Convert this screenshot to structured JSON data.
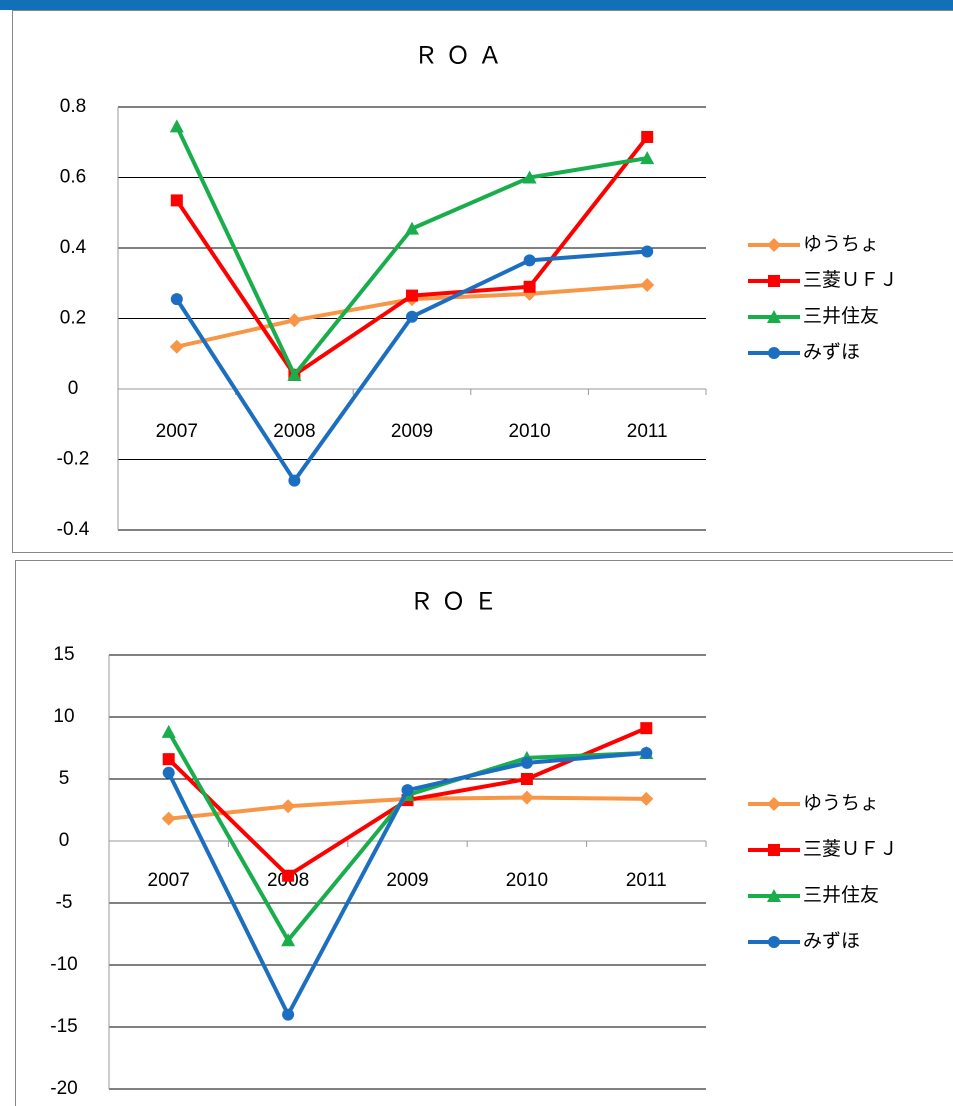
{
  "chart_data": [
    {
      "type": "line",
      "title": "ＲＯＡ",
      "categories": [
        "2007",
        "2008",
        "2009",
        "2010",
        "2011"
      ],
      "ylim": [
        -0.4,
        0.8
      ],
      "yticks": [
        -0.4,
        -0.2,
        0,
        0.2,
        0.4,
        0.6,
        0.8
      ],
      "grid": true,
      "legend": "right",
      "series": [
        {
          "name": "ゆうちょ",
          "color": "#f79646",
          "marker": "diamond",
          "values": [
            0.12,
            0.195,
            0.255,
            0.27,
            0.295
          ]
        },
        {
          "name": "三菱ＵＦＪ",
          "color": "#ff0000",
          "marker": "square",
          "values": [
            0.535,
            0.04,
            0.265,
            0.29,
            0.715
          ]
        },
        {
          "name": "三井住友",
          "color": "#1aad4c",
          "marker": "triangle",
          "values": [
            0.745,
            0.04,
            0.455,
            0.6,
            0.655
          ]
        },
        {
          "name": "みずほ",
          "color": "#1c6fc0",
          "marker": "circle",
          "values": [
            0.255,
            -0.26,
            0.205,
            0.365,
            0.39
          ]
        }
      ]
    },
    {
      "type": "line",
      "title": "ＲＯＥ",
      "categories": [
        "2007",
        "2008",
        "2009",
        "2010",
        "2011"
      ],
      "ylim": [
        -20,
        15
      ],
      "yticks": [
        -20,
        -15,
        -10,
        -5,
        0,
        5,
        10,
        15
      ],
      "grid": true,
      "legend": "right",
      "series": [
        {
          "name": "ゆうちょ",
          "color": "#f79646",
          "marker": "diamond",
          "values": [
            1.8,
            2.8,
            3.4,
            3.5,
            3.4
          ]
        },
        {
          "name": "三菱ＵＦＪ",
          "color": "#ff0000",
          "marker": "square",
          "values": [
            6.6,
            -2.8,
            3.3,
            5.0,
            9.1
          ]
        },
        {
          "name": "三井住友",
          "color": "#1aad4c",
          "marker": "triangle",
          "values": [
            8.8,
            -8.0,
            3.7,
            6.7,
            7.1
          ]
        },
        {
          "name": "みずほ",
          "color": "#1c6fc0",
          "marker": "circle",
          "values": [
            5.5,
            -14.0,
            4.1,
            6.3,
            7.1
          ]
        }
      ]
    }
  ]
}
